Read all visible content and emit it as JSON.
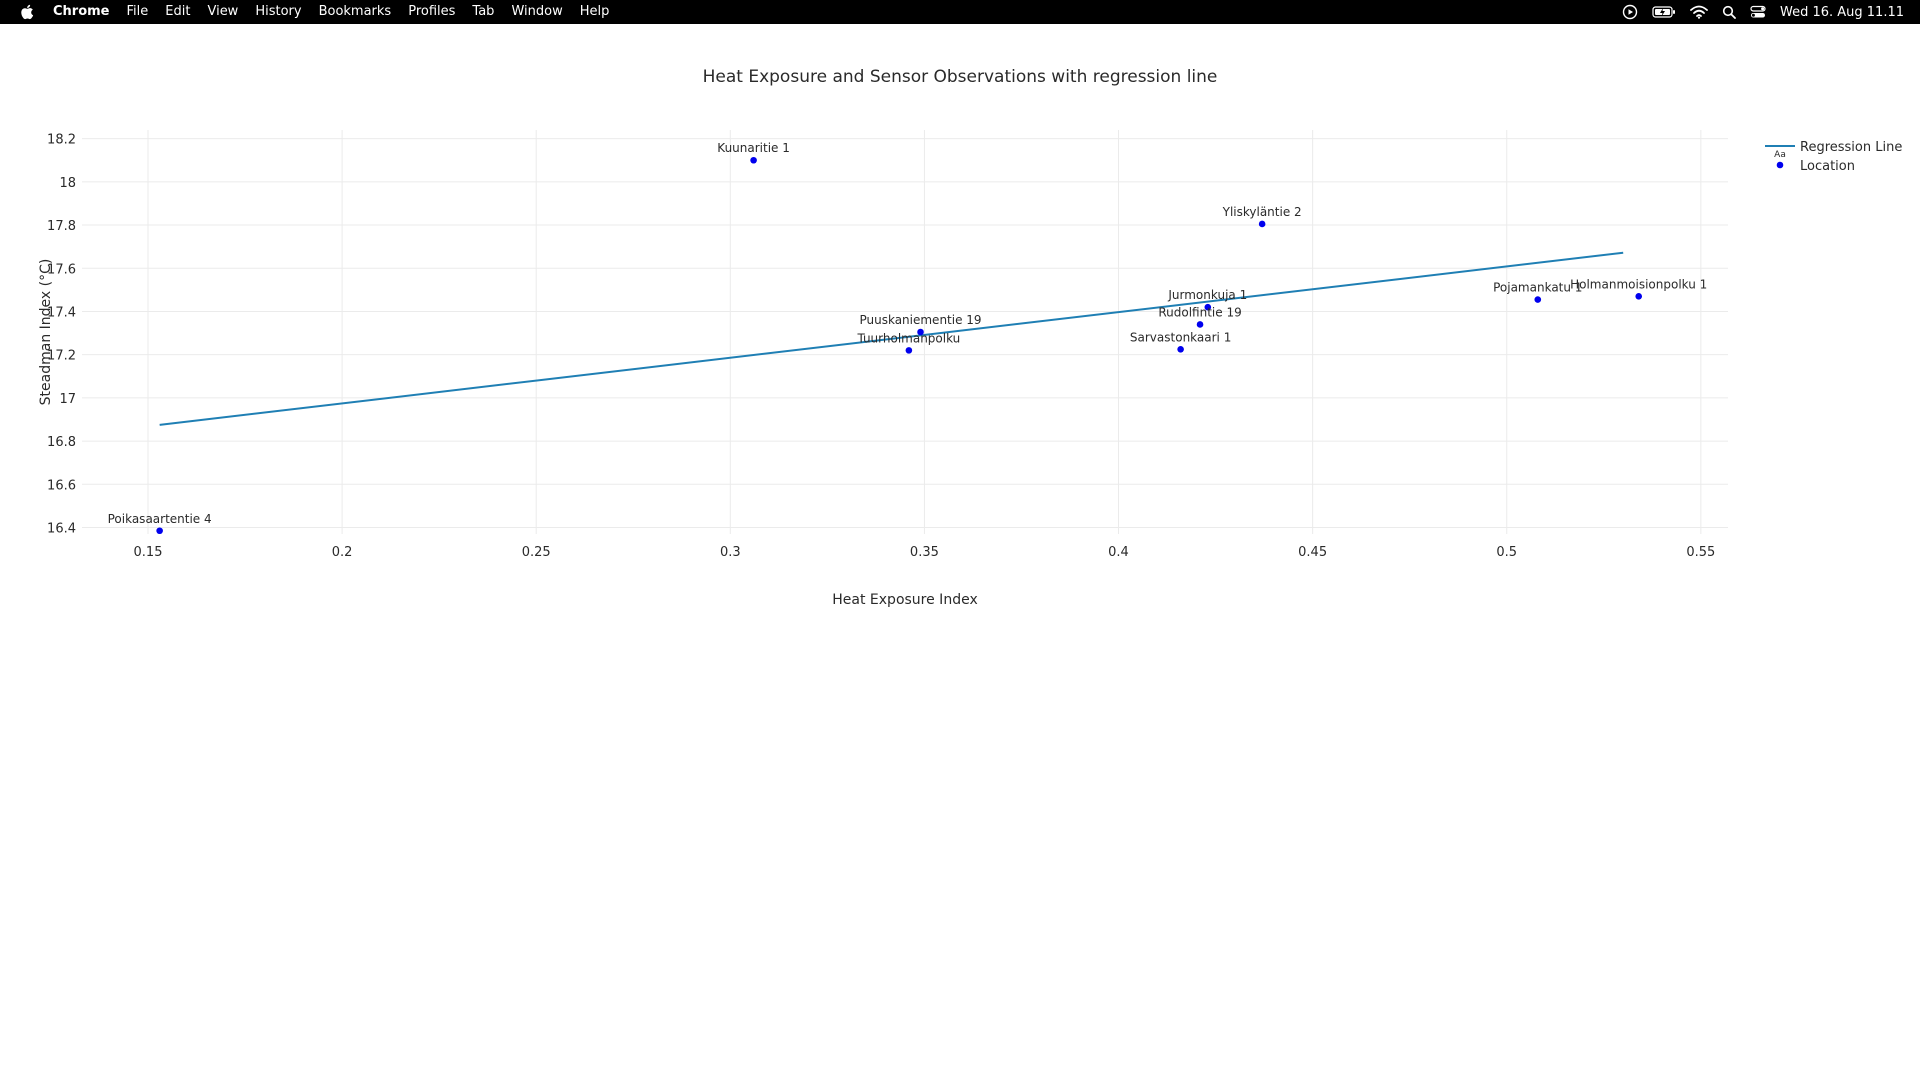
{
  "menubar": {
    "app_name": "Chrome",
    "menus": [
      "File",
      "Edit",
      "View",
      "History",
      "Bookmarks",
      "Profiles",
      "Tab",
      "Window",
      "Help"
    ],
    "clock": "Wed 16. Aug  11.11",
    "icons": [
      "apple-icon",
      "play-circle-icon",
      "battery-icon",
      "wifi-icon",
      "search-icon",
      "control-center-icon"
    ]
  },
  "chart_data": {
    "type": "scatter",
    "title": "Heat Exposure and Sensor Observations with regression line",
    "xlabel": "Heat Exposure Index",
    "ylabel": "Steadman Index (°C)",
    "xlim": [
      0.133,
      0.557
    ],
    "ylim": [
      16.37,
      18.24
    ],
    "x_ticks": [
      0.15,
      0.2,
      0.25,
      0.3,
      0.35,
      0.4,
      0.45,
      0.5,
      0.55
    ],
    "x_tick_labels": [
      "0.15",
      "0.2",
      "0.25",
      "0.3",
      "0.35",
      "0.4",
      "0.45",
      "0.5",
      "0.55"
    ],
    "y_ticks": [
      16.4,
      16.6,
      16.8,
      17,
      17.2,
      17.4,
      17.6,
      17.8,
      18,
      18.2
    ],
    "y_tick_labels": [
      "16.4",
      "16.6",
      "16.8",
      "17",
      "17.2",
      "17.4",
      "17.6",
      "17.8",
      "18",
      "18.2"
    ],
    "grid": true,
    "legend_position": "top-right",
    "colors": {
      "points": "#0000ee",
      "regression": "#1f7fb4",
      "grid": "#ebebeb",
      "text": "#2a2a2a"
    },
    "series": [
      {
        "name": "Regression Line",
        "type": "line",
        "x": [
          0.153,
          0.53
        ],
        "y": [
          16.875,
          17.672
        ]
      },
      {
        "name": "Location",
        "type": "scatter",
        "points": [
          {
            "label": "Kuunaritie 1",
            "x": 0.306,
            "y": 18.1
          },
          {
            "label": "Yliskyläntie 2",
            "x": 0.437,
            "y": 17.805
          },
          {
            "label": "Jurmonkuja 1",
            "x": 0.423,
            "y": 17.42
          },
          {
            "label": "Rudolfintie 19",
            "x": 0.421,
            "y": 17.34
          },
          {
            "label": "Sarvastonkaari 1",
            "x": 0.416,
            "y": 17.225
          },
          {
            "label": "Puuskaniementie 19",
            "x": 0.349,
            "y": 17.305
          },
          {
            "label": "Tuurholmanpolku",
            "x": 0.346,
            "y": 17.22
          },
          {
            "label": "Pojamankatu 1",
            "x": 0.508,
            "y": 17.455
          },
          {
            "label": "Holmanmoisionpolku 1",
            "x": 0.534,
            "y": 17.47
          },
          {
            "label": "Poikasaartentie 4",
            "x": 0.153,
            "y": 16.385
          }
        ]
      }
    ],
    "legend_glyph_text": "Aa"
  }
}
